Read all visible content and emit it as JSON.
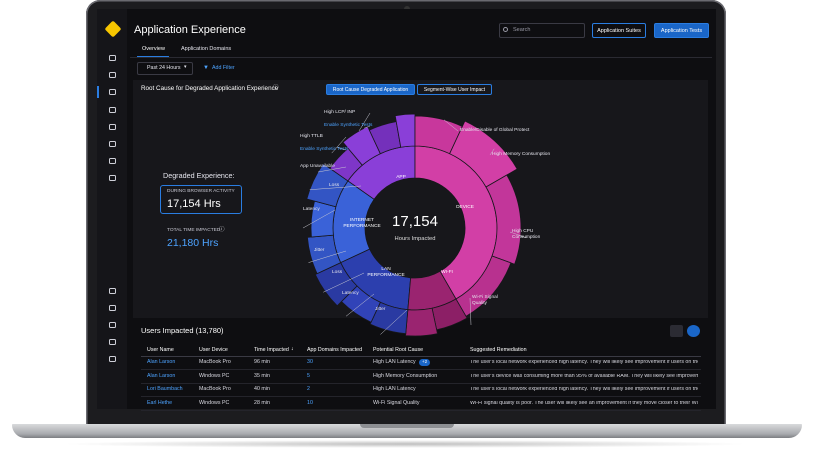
{
  "header": {
    "title": "Application Experience",
    "search_placeholder": "Search",
    "buttons": [
      "Application Suites",
      "Application Tests"
    ]
  },
  "tabs": [
    "Overview",
    "Application Domains"
  ],
  "filters": {
    "time_range": "Past 24 Hours",
    "add_filter": "Add Filter"
  },
  "root_cause_panel": {
    "title": "Root Cause for Degraded Application Experience",
    "toggles": [
      "Root Cause Degraded Application",
      "Segment-Wise User Impact"
    ],
    "summary": {
      "heading": "Degraded Experience:",
      "browser_label": "DURING BROWSER ACTIVITY",
      "browser_value": "17,154 Hrs",
      "total_label": "TOTAL TIME IMPACTED",
      "total_value": "21,180 Hrs"
    },
    "sunburst": {
      "center_value": "17,154",
      "center_label": "Hours Impacted",
      "segments": [
        "APP",
        "DEVICE",
        "INTERNET PERFORMANCE",
        "LAN PERFORMANCE",
        "WI-FI"
      ],
      "callouts": [
        "High LCP/ INP",
        "Enable Synthetic Tests",
        "High TTLB",
        "Enable Synthetic Tests",
        "App Unavailable",
        "Loss",
        "Latency",
        "Jitter",
        "Loss",
        "Latency",
        "Jitter",
        "Enable/Disable of Global Protect",
        "High Memory Consumption",
        "High CPU Consumption",
        "Wi-Fi Signal Quality"
      ]
    }
  },
  "users_table": {
    "title": "Users Impacted (13,780)",
    "columns": [
      "User Name",
      "User Device",
      "Time Impacted",
      "App Domains Impacted",
      "Potential  Root Cause",
      "Suggested Remediation"
    ],
    "rows": [
      {
        "user": "Alan Larson",
        "device": "MacBook Pro",
        "time": "96 min",
        "domains": "30",
        "cause": "High LAN Latency",
        "cause_badge": "+2",
        "remediation": "The user's local network experienced high latency. They will likely see improvement if users on the..."
      },
      {
        "user": "Alan Larson",
        "device": "Windows PC",
        "time": "35 min",
        "domains": "5",
        "cause": "High Memory Consumption",
        "remediation": "The user's device was consuming more than 95% of available RAM. They will likely see improvement if ..."
      },
      {
        "user": "Lori Baumbach",
        "device": "MacBook Pro",
        "time": "40 min",
        "domains": "2",
        "cause": "High LAN Latency",
        "remediation": "The user's local network experienced high latency. They will likely see improvement if users on the..."
      },
      {
        "user": "Earl Hethe",
        "device": "Windows PC",
        "time": "28 min",
        "domains": "10",
        "cause": "Wi-Fi Signal Quality",
        "remediation": "Wi-Fi signal quality is poor. The user will likely see an improvement if they move closer to their Wi..."
      }
    ]
  }
}
